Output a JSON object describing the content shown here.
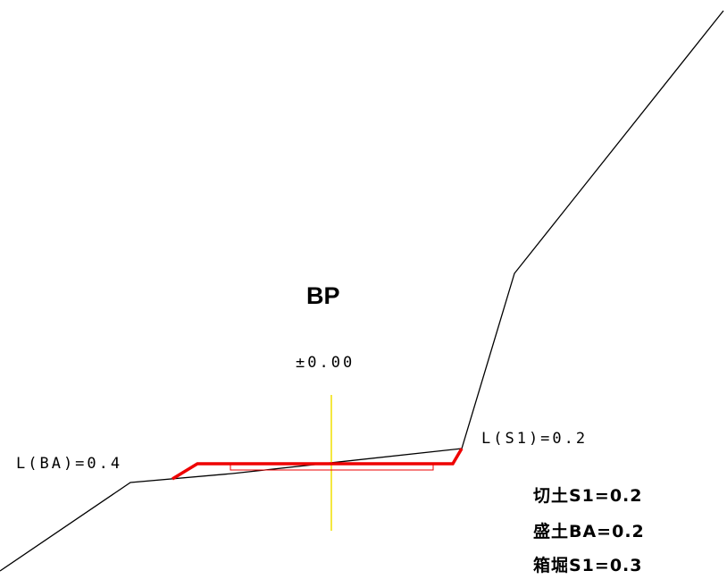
{
  "section": {
    "station_label": "BP",
    "elevation_label": "±0.00",
    "left_slope_label": "L(BA)=0.4",
    "right_slope_label": "L(S1)=0.2"
  },
  "summary": [
    "切土S1=0.2",
    "盛土BA=0.2",
    "箱堀S1=0.3"
  ],
  "colors": {
    "ground_line": "#000000",
    "design_road": "#ee0000",
    "centerline": "#f0e000",
    "text": "#000000"
  }
}
